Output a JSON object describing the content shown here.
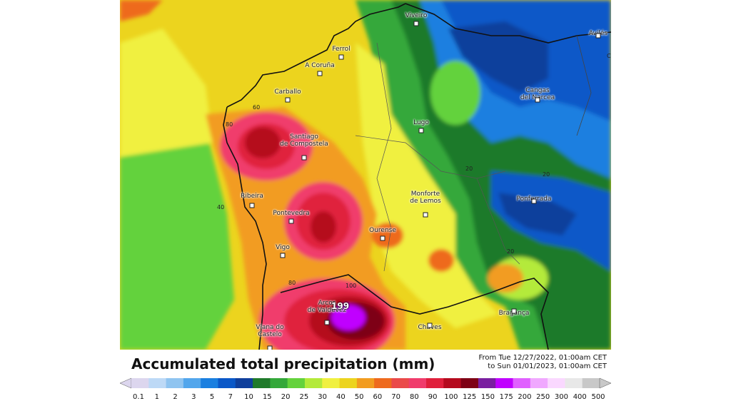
{
  "legend": {
    "title": "Accumulated total precipitation (mm)",
    "period_from": "From Tue 12/27/2022, 01:00am CET",
    "period_to": "to Sun 01/01/2023, 01:00am CET",
    "ticks": [
      "0.1",
      "1",
      "2",
      "3",
      "5",
      "7",
      "10",
      "15",
      "20",
      "25",
      "30",
      "40",
      "50",
      "60",
      "70",
      "80",
      "90",
      "100",
      "125",
      "150",
      "175",
      "200",
      "250",
      "300",
      "400",
      "500"
    ],
    "colors": [
      "#dcd6ee",
      "#bdd9f6",
      "#8fc4f0",
      "#52a6ec",
      "#1a7fe0",
      "#0a58c8",
      "#0f3f9c",
      "#1f7a2a",
      "#34a83a",
      "#64d23c",
      "#b4ea3a",
      "#f0f040",
      "#ecd41e",
      "#f29c20",
      "#ee6a1e",
      "#ea4a4a",
      "#f03c6c",
      "#e0203c",
      "#b50a1e",
      "#7e0014",
      "#7a1fa0",
      "#c000ff",
      "#e060ff",
      "#f0a8ff",
      "#fad8ff",
      "#e8e8e8",
      "#c8c8c8"
    ]
  },
  "cities": [
    {
      "name": "Viveiro"
    },
    {
      "name": "Avilés"
    },
    {
      "name": "Ferrol"
    },
    {
      "name": "A Coruña"
    },
    {
      "name": "Carballo"
    },
    {
      "name": "Cangas\ndel Narcea"
    },
    {
      "name": "Santiago\nde Compostela"
    },
    {
      "name": "Lugo"
    },
    {
      "name": "Ribeira"
    },
    {
      "name": "Pontevedra"
    },
    {
      "name": "Monforte\nde Lemos"
    },
    {
      "name": "Ponferrada"
    },
    {
      "name": "Ourense"
    },
    {
      "name": "Vigo"
    },
    {
      "name": "Arcos\nde Valdevez"
    },
    {
      "name": "Viana do\nCastelo"
    },
    {
      "name": "Chaves"
    },
    {
      "name": "Bragança"
    }
  ],
  "contour_labels": [
    "60",
    "80",
    "40",
    "80",
    "100",
    "20",
    "20",
    "20"
  ],
  "max_value": "199",
  "edge_letter": "C"
}
